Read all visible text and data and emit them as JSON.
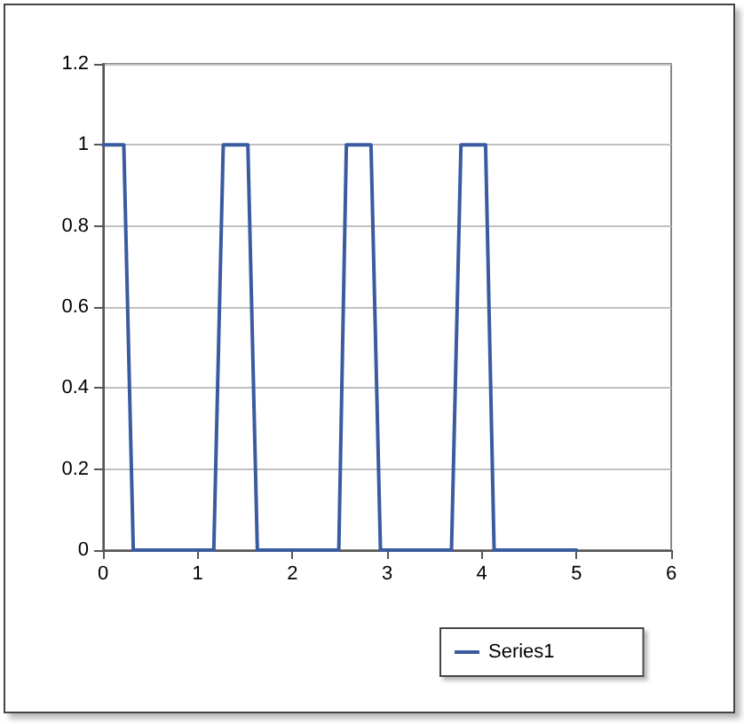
{
  "chart_data": {
    "type": "line",
    "x": [
      0,
      0.22,
      0.32,
      1.17,
      1.27,
      1.53,
      1.63,
      2.49,
      2.57,
      2.83,
      2.93,
      3.68,
      3.78,
      4.04,
      4.13,
      5
    ],
    "series": [
      {
        "name": "Series1",
        "color": "#3a5ba0",
        "values": [
          1,
          1,
          0,
          0,
          1,
          1,
          0,
          0,
          1,
          1,
          0,
          0,
          1,
          1,
          0,
          0
        ]
      }
    ],
    "xlim": [
      0,
      6
    ],
    "xticks": [
      0,
      1,
      2,
      3,
      4,
      5,
      6
    ],
    "ylim": [
      0,
      1.2
    ],
    "yticks": [
      0,
      0.2,
      0.4,
      0.6,
      0.8,
      1,
      1.2
    ],
    "grid": "y",
    "legend": "bottom",
    "marker": "none",
    "line_style": "solid"
  }
}
